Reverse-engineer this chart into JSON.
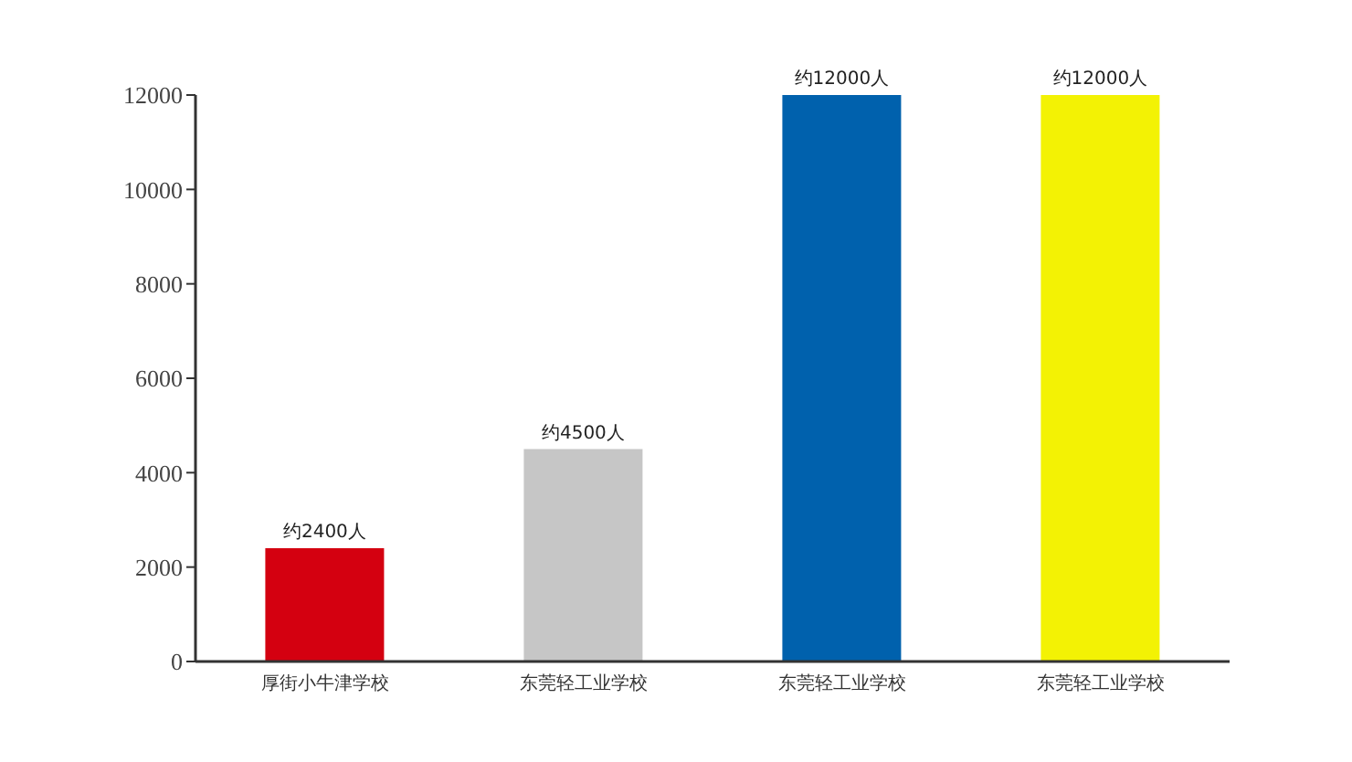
{
  "chart_data": {
    "type": "bar",
    "categories": [
      "厚街小牛津学校",
      "东莞轻工业学校",
      "东莞轻工业学校",
      "东莞轻工业学校"
    ],
    "values": [
      2400,
      4500,
      12000,
      12000
    ],
    "colors": [
      "#d40010",
      "#c6c6c6",
      "#0061ad",
      "#f3f204"
    ],
    "value_labels": [
      "约2400人",
      "约4500人",
      "约12000人",
      "约12000人"
    ],
    "ylim": [
      0,
      12000
    ],
    "yticks": [
      0,
      2000,
      4000,
      6000,
      8000,
      10000,
      12000
    ],
    "grid": false,
    "legend": false
  }
}
